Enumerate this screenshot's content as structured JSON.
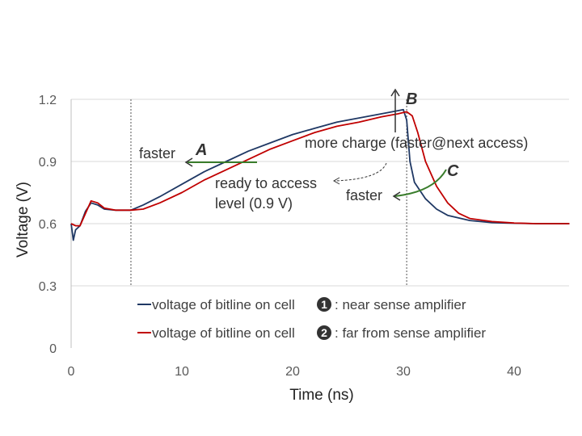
{
  "chart_data": {
    "type": "line",
    "title": "",
    "xlabel": "Time (ns)",
    "ylabel": "Voltage (V)",
    "xlim": [
      0,
      45
    ],
    "ylim": [
      0,
      1.2
    ],
    "x_ticks": [
      "0",
      "10",
      "20",
      "30",
      "40"
    ],
    "y_ticks": [
      "0",
      "0.3",
      "0.6",
      "0.9",
      "1.2"
    ],
    "x_tick_values": [
      0,
      10,
      20,
      30,
      40
    ],
    "y_tick_values": [
      0,
      0.3,
      0.6,
      0.9,
      1.2
    ],
    "grid": "horizontal",
    "markers_x": [
      5.4,
      30.3
    ],
    "series": [
      {
        "legend_prefix": "voltage of bitline on cell",
        "badge": "1",
        "legend_suffix": ": near sense amplifier",
        "color": "#1f3864",
        "points": [
          [
            0,
            0.6
          ],
          [
            0.1,
            0.56
          ],
          [
            0.2,
            0.52
          ],
          [
            0.4,
            0.57
          ],
          [
            0.8,
            0.59
          ],
          [
            1.3,
            0.66
          ],
          [
            1.8,
            0.7
          ],
          [
            2.4,
            0.69
          ],
          [
            3.0,
            0.67
          ],
          [
            4.0,
            0.665
          ],
          [
            5.4,
            0.665
          ],
          [
            6.5,
            0.69
          ],
          [
            8,
            0.73
          ],
          [
            10,
            0.79
          ],
          [
            12,
            0.85
          ],
          [
            14,
            0.9
          ],
          [
            16,
            0.95
          ],
          [
            18,
            0.99
          ],
          [
            20,
            1.03
          ],
          [
            22,
            1.06
          ],
          [
            24,
            1.09
          ],
          [
            26,
            1.11
          ],
          [
            28,
            1.13
          ],
          [
            29.5,
            1.145
          ],
          [
            30.0,
            1.15
          ],
          [
            30.3,
            1.1
          ],
          [
            30.6,
            0.9
          ],
          [
            31.0,
            0.8
          ],
          [
            32,
            0.72
          ],
          [
            33,
            0.67
          ],
          [
            34,
            0.64
          ],
          [
            36,
            0.615
          ],
          [
            38,
            0.605
          ],
          [
            40,
            0.602
          ],
          [
            42,
            0.6
          ],
          [
            45,
            0.6
          ]
        ]
      },
      {
        "legend_prefix": "voltage of bitline on cell",
        "badge": "2",
        "legend_suffix": ": far from sense amplifier",
        "color": "#c00000",
        "points": [
          [
            0,
            0.6
          ],
          [
            0.4,
            0.59
          ],
          [
            0.8,
            0.59
          ],
          [
            1.3,
            0.65
          ],
          [
            1.8,
            0.71
          ],
          [
            2.4,
            0.7
          ],
          [
            3.0,
            0.675
          ],
          [
            4.0,
            0.665
          ],
          [
            5.4,
            0.665
          ],
          [
            6.5,
            0.67
          ],
          [
            8,
            0.7
          ],
          [
            10,
            0.75
          ],
          [
            12,
            0.81
          ],
          [
            14,
            0.86
          ],
          [
            16,
            0.91
          ],
          [
            18,
            0.96
          ],
          [
            20,
            1.0
          ],
          [
            22,
            1.04
          ],
          [
            24,
            1.07
          ],
          [
            26,
            1.09
          ],
          [
            28,
            1.115
          ],
          [
            29.5,
            1.13
          ],
          [
            30.3,
            1.14
          ],
          [
            30.8,
            1.12
          ],
          [
            31.3,
            1.04
          ],
          [
            32,
            0.9
          ],
          [
            33,
            0.78
          ],
          [
            34,
            0.7
          ],
          [
            35,
            0.65
          ],
          [
            36,
            0.625
          ],
          [
            38,
            0.61
          ],
          [
            40,
            0.603
          ],
          [
            42,
            0.6
          ],
          [
            45,
            0.6
          ]
        ]
      }
    ],
    "annotations": {
      "faster_left": "faster",
      "label_a": "A",
      "ready_line1": "ready to access",
      "ready_line2": "level (0.9 V)",
      "label_b": "B",
      "more_charge": "more charge (faster@next access)",
      "label_c": "C",
      "faster_right": "faster"
    }
  }
}
